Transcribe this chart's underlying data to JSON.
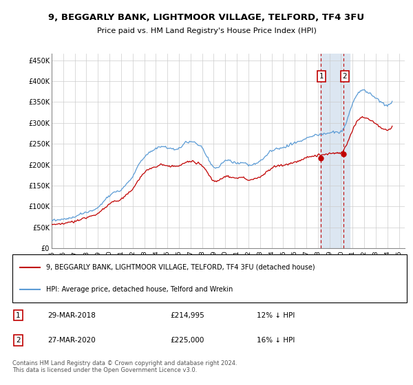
{
  "title": "9, BEGGARLY BANK, LIGHTMOOR VILLAGE, TELFORD, TF4 3FU",
  "subtitle": "Price paid vs. HM Land Registry's House Price Index (HPI)",
  "ylabel_ticks": [
    "£0",
    "£50K",
    "£100K",
    "£150K",
    "£200K",
    "£250K",
    "£300K",
    "£350K",
    "£400K",
    "£450K"
  ],
  "ytick_values": [
    0,
    50000,
    100000,
    150000,
    200000,
    250000,
    300000,
    350000,
    400000,
    450000
  ],
  "ylim": [
    0,
    465000
  ],
  "xlim_start": 1995.0,
  "xlim_end": 2025.5,
  "hpi_color": "#5b9bd5",
  "price_color": "#c00000",
  "highlight_color": "#dce6f1",
  "marker1_x": 2018.22,
  "marker1_y": 214995,
  "marker2_x": 2020.22,
  "marker2_y": 225000,
  "marker1_label": "29-MAR-2018",
  "marker1_price": "£214,995",
  "marker1_hpi": "12% ↓ HPI",
  "marker2_label": "27-MAR-2020",
  "marker2_price": "£225,000",
  "marker2_hpi": "16% ↓ HPI",
  "legend_line1": "9, BEGGARLY BANK, LIGHTMOOR VILLAGE, TELFORD, TF4 3FU (detached house)",
  "legend_line2": "HPI: Average price, detached house, Telford and Wrekin",
  "footer": "Contains HM Land Registry data © Crown copyright and database right 2024.\nThis data is licensed under the Open Government Licence v3.0."
}
